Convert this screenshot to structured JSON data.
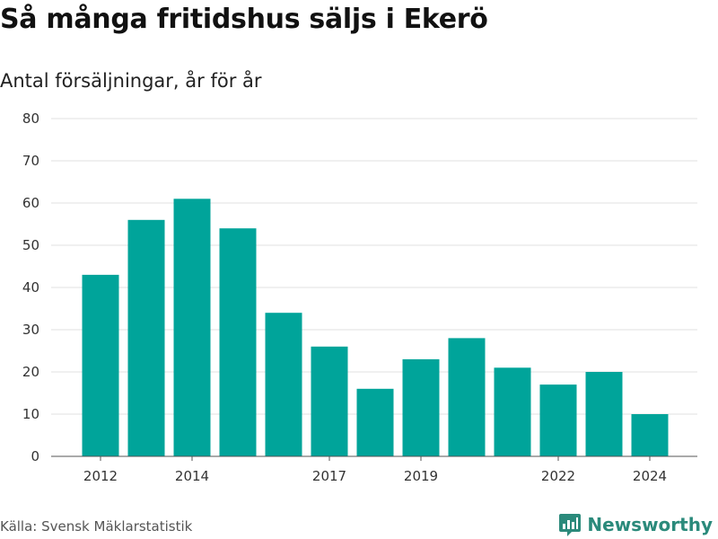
{
  "header": {
    "title": "Så många fritidshus säljs i Ekerö",
    "subtitle": "Antal försäljningar, år för år"
  },
  "footer": {
    "source": "Källa: Svensk Mäklarstatistik",
    "brand": "Newsworthy"
  },
  "colors": {
    "bar": "#00a49a",
    "grid": "#e0e0e0",
    "brand": "#2b8a7b"
  },
  "chart_data": {
    "type": "bar",
    "categories": [
      "2012",
      "2013",
      "2014",
      "2015",
      "2016",
      "2017",
      "2018",
      "2019",
      "2020",
      "2021",
      "2022",
      "2023",
      "2024"
    ],
    "values": [
      43,
      56,
      61,
      54,
      34,
      26,
      16,
      23,
      28,
      21,
      17,
      20,
      10
    ],
    "tick_labels_x": [
      "2012",
      "2014",
      "2017",
      "2019",
      "2022",
      "2024"
    ],
    "ylim": [
      0,
      80
    ],
    "yticks": [
      0,
      10,
      20,
      30,
      40,
      50,
      60,
      70,
      80
    ],
    "grid": true,
    "xlabel": "",
    "ylabel": ""
  }
}
